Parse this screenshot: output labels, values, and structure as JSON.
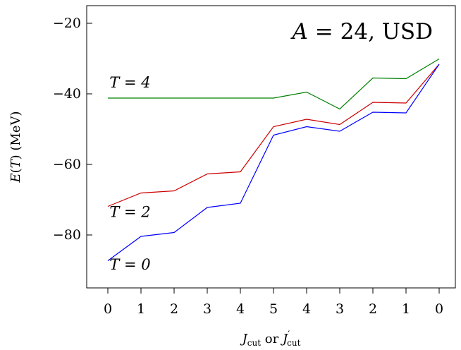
{
  "chart_data": {
    "type": "line",
    "title": "A = 24, USD",
    "xlabel": "J_cut or J'_cut",
    "ylabel": "E(T) (MeV)",
    "categories": [
      "0",
      "1",
      "2",
      "3",
      "4",
      "5",
      "4",
      "3",
      "2",
      "1",
      "0"
    ],
    "ylim": [
      -95,
      -15
    ],
    "yticks": [
      -20,
      -40,
      -60,
      -80
    ],
    "ytick_labels": [
      "−20",
      "−40",
      "−60",
      "−80"
    ],
    "grid": false,
    "legend": "none",
    "series": [
      {
        "color": "#008000",
        "values": [
          -41.2,
          -41.2,
          -41.2,
          -41.2,
          -41.2,
          -41.2,
          -39.5,
          -44.3,
          -35.5,
          -35.7,
          -30.1
        ]
      },
      {
        "color": "#cc0000",
        "values": [
          -71.9,
          -68.1,
          -67.5,
          -62.7,
          -62.1,
          -49.3,
          -47.2,
          -48.7,
          -42.4,
          -42.6,
          -31.6
        ]
      },
      {
        "color": "#0000ff",
        "values": [
          -87.3,
          -80.4,
          -79.3,
          -72.2,
          -71.0,
          -51.7,
          -49.3,
          -50.6,
          -45.2,
          -45.4,
          -31.6
        ]
      }
    ],
    "annotations": [
      {
        "text": "T = 4",
        "x": 0.05,
        "y": -38.2
      },
      {
        "text": "T = 2",
        "x": 0.05,
        "y": -74.9
      },
      {
        "text": "T = 0",
        "x": 0.05,
        "y": -89.8
      }
    ]
  }
}
